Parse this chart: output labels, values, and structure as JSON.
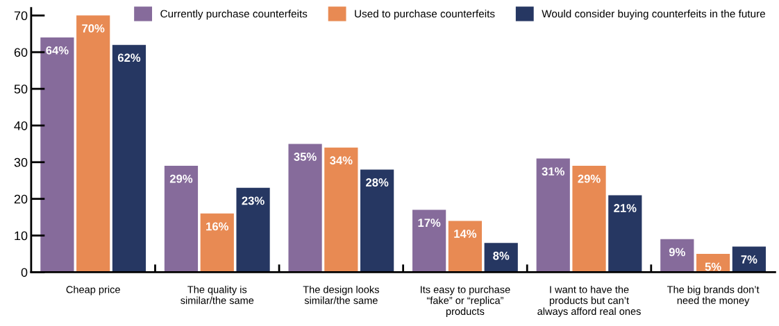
{
  "chart_data": {
    "type": "bar",
    "categories": [
      "Cheap price",
      "The quality is\nsimilar/the same",
      "The design looks\nsimilar/the same",
      "Its easy to purchase\n“fake” or “replica”\nproducts",
      "I want to have the\nproducts but can’t\nalways afford real ones",
      "The big brands don’t\nneed the money"
    ],
    "series": [
      {
        "name": "Currently purchase counterfeits",
        "color": "#866b9b",
        "values": [
          64,
          29,
          35,
          17,
          31,
          9
        ],
        "value_labels": [
          "64%",
          "29%",
          "35%",
          "17%",
          "31%",
          "9%"
        ]
      },
      {
        "name": "Used to purchase counterfeits",
        "color": "#e88a53",
        "values": [
          70,
          16,
          34,
          14,
          29,
          5
        ],
        "value_labels": [
          "70%",
          "16%",
          "34%",
          "14%",
          "29%",
          "5%"
        ]
      },
      {
        "name": "Would consider buying counterfeits in the future",
        "color": "#263762",
        "values": [
          62,
          23,
          28,
          8,
          21,
          7
        ],
        "value_labels": [
          "62%",
          "23%",
          "28%",
          "8%",
          "21%",
          "7%"
        ]
      }
    ],
    "ylim": [
      0,
      72
    ],
    "yticks": [
      0,
      10,
      20,
      30,
      40,
      50,
      60,
      70
    ],
    "grid": false,
    "legend": "top right"
  }
}
